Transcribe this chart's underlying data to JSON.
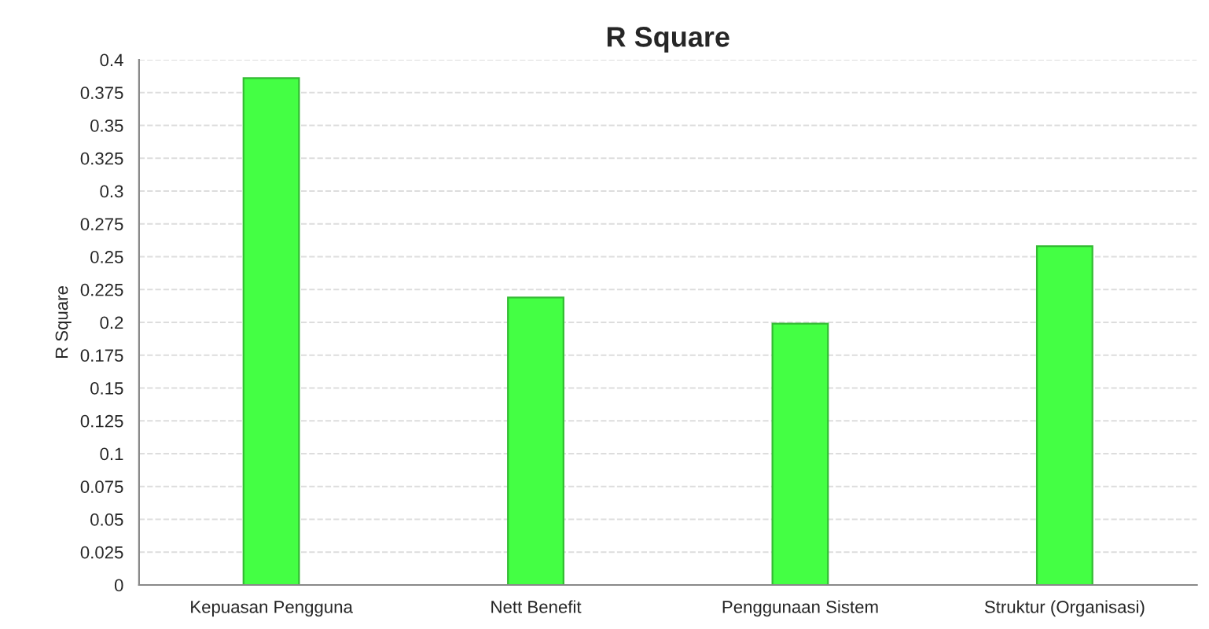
{
  "chart_data": {
    "type": "bar",
    "title": "R Square",
    "ylabel": "R Square",
    "categories": [
      "Kepuasan Pengguna",
      "Nett Benefit",
      "Penggunaan Sistem",
      "Struktur (Organisasi)"
    ],
    "values": [
      0.386,
      0.219,
      0.199,
      0.258
    ],
    "color": "#44ff44",
    "ylim": [
      0,
      0.4
    ],
    "yticks": [
      0,
      0.025,
      0.05,
      0.075,
      0.1,
      0.125,
      0.15,
      0.175,
      0.2,
      0.225,
      0.25,
      0.275,
      0.3,
      0.325,
      0.35,
      0.375,
      0.4
    ],
    "grid": "y",
    "legend": false
  }
}
